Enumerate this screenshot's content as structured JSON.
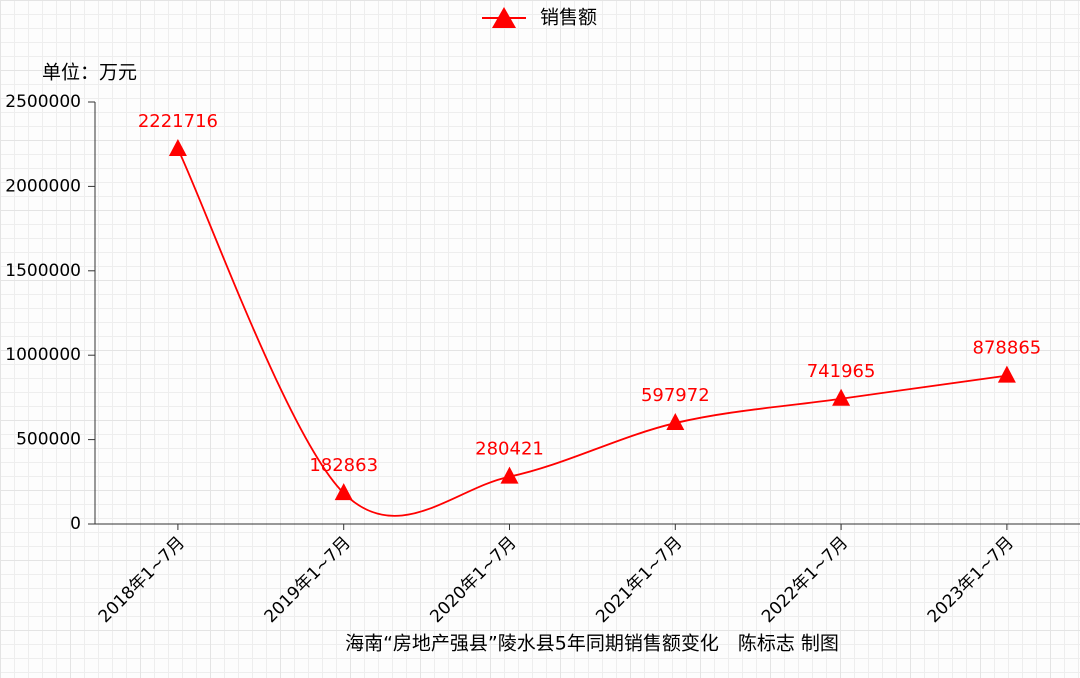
{
  "chart_data": {
    "type": "line",
    "title": "海南“房地产强县”陵水县5年同期销售额变化　陈标志 制图",
    "y_label": "单位：万元",
    "categories": [
      "2018年1~7月",
      "2019年1~7月",
      "2020年1~7月",
      "2021年1~7月",
      "2022年1~7月",
      "2023年1~7月"
    ],
    "series": [
      {
        "name": "销售额",
        "color": "#ff0000",
        "values": [
          2221716,
          182863,
          280421,
          597972,
          741965,
          878865
        ]
      }
    ],
    "ylim": [
      0,
      2500000
    ],
    "yticks": [
      0,
      500000,
      1000000,
      1500000,
      2000000,
      2500000
    ],
    "grid": false,
    "smooth": true
  }
}
